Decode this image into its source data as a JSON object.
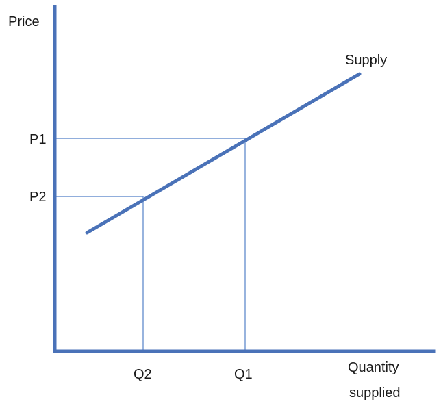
{
  "chart_data": {
    "type": "line",
    "ylabel": "Price",
    "xlabel_lines": [
      "Quantity",
      "supplied"
    ],
    "curve_label": "Supply",
    "price_ticks": [
      "P1",
      "P2"
    ],
    "quantity_ticks": [
      "Q2",
      "Q1"
    ]
  },
  "colors": {
    "axis": "#4a72b8",
    "supply_line": "#4a72b8",
    "guide_lines": "#6d93d0",
    "text": "#1a1a1a"
  }
}
